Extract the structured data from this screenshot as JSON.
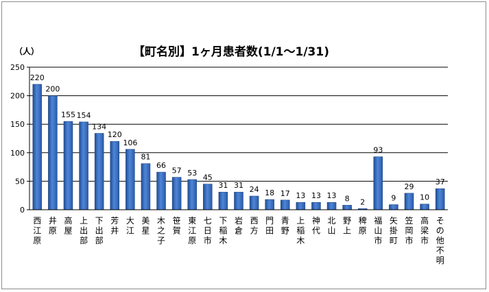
{
  "chart_data": {
    "type": "bar",
    "title": "【町名別】1ヶ月患者数(1/1～1/31)",
    "ylabel": "（人）",
    "xlabel": "",
    "ylim": [
      0,
      250
    ],
    "yticks": [
      0,
      50,
      100,
      150,
      200,
      250
    ],
    "grid": true,
    "legend": "none",
    "bar_color": "#3f73c2",
    "categories": [
      "西江原",
      "井原",
      "高屋",
      "上出部",
      "下出部",
      "芳井",
      "大江",
      "美星",
      "木之子",
      "笹賀",
      "東江原",
      "七日市",
      "下稲木",
      "岩倉",
      "西方",
      "門田",
      "青野",
      "上稲木",
      "神代",
      "北山",
      "野上",
      "稗原",
      "福山市",
      "矢掛町",
      "笠岡市",
      "高梁市",
      "その他不明"
    ],
    "values": [
      220,
      200,
      155,
      154,
      134,
      120,
      106,
      81,
      66,
      57,
      53,
      45,
      31,
      31,
      24,
      18,
      17,
      13,
      13,
      13,
      8,
      2,
      93,
      9,
      29,
      10,
      37
    ]
  }
}
